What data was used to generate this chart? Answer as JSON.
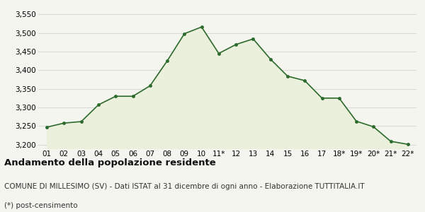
{
  "x_labels": [
    "01",
    "02",
    "03",
    "04",
    "05",
    "06",
    "07",
    "08",
    "09",
    "10",
    "11*",
    "12",
    "13",
    "14",
    "15",
    "16",
    "17",
    "18*",
    "19*",
    "20*",
    "21*",
    "22*"
  ],
  "values": [
    3247,
    3258,
    3262,
    3307,
    3330,
    3330,
    3358,
    3425,
    3498,
    3516,
    3445,
    3469,
    3484,
    3430,
    3384,
    3372,
    3325,
    3325,
    3263,
    3248,
    3209,
    3201
  ],
  "line_color": "#2d6a2d",
  "fill_color": "#eaf0dc",
  "marker_color": "#2d6a2d",
  "background_color": "#f5f5f0",
  "grid_color": "#cccccc",
  "ylim": [
    3190,
    3560
  ],
  "yticks": [
    3200,
    3250,
    3300,
    3350,
    3400,
    3450,
    3500,
    3550
  ],
  "title": "Andamento della popolazione residente",
  "subtitle": "COMUNE DI MILLESIMO (SV) - Dati ISTAT al 31 dicembre di ogni anno - Elaborazione TUTTITALIA.IT",
  "footnote": "(*) post-censimento",
  "title_fontsize": 9.5,
  "subtitle_fontsize": 7.5,
  "footnote_fontsize": 7.5,
  "tick_fontsize": 7.5
}
